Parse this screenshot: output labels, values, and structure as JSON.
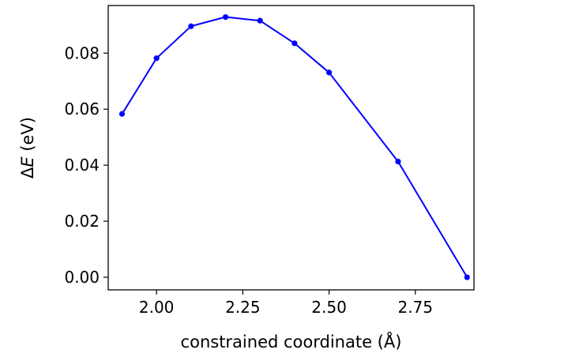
{
  "chart_data": {
    "type": "line",
    "title": "",
    "xlabel": "constrained coordinate (Å)",
    "ylabel_symbol": "Δ",
    "ylabel_var": "E",
    "ylabel_unit": " (eV)",
    "xlim": [
      1.86,
      2.92
    ],
    "ylim": [
      -0.0045,
      0.097
    ],
    "xticks": [
      2.0,
      2.25,
      2.5,
      2.75
    ],
    "xtick_labels": [
      "2.00",
      "2.25",
      "2.50",
      "2.75"
    ],
    "yticks": [
      0.0,
      0.02,
      0.04,
      0.06,
      0.08
    ],
    "ytick_labels": [
      "0.00",
      "0.02",
      "0.04",
      "0.06",
      "0.08"
    ],
    "grid": false,
    "legend": "none",
    "color": "#0000ff",
    "series": [
      {
        "x": [
          1.9,
          2.0,
          2.1,
          2.2,
          2.3,
          2.4,
          2.5,
          2.7,
          2.9
        ],
        "y": [
          0.0583,
          0.0782,
          0.0896,
          0.0929,
          0.0916,
          0.0835,
          0.0731,
          0.0413,
          0.0
        ]
      }
    ]
  }
}
